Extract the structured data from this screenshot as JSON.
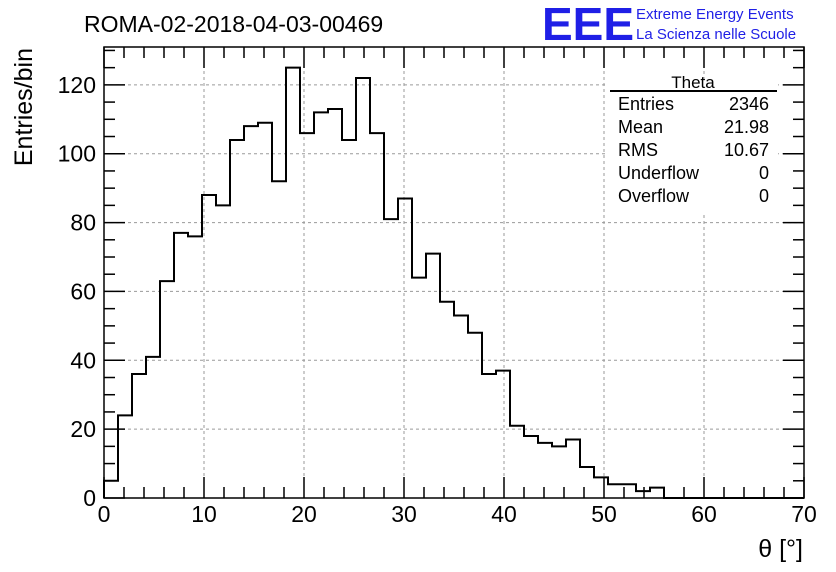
{
  "chart_data": {
    "type": "histogram",
    "title": "ROMA-02-2018-04-03-00469",
    "xlabel": "θ [°]",
    "ylabel": "Entries/bin",
    "xlim": [
      0,
      70
    ],
    "ylim": [
      0,
      131
    ],
    "grid": true,
    "x_ticks": [
      "0",
      "10",
      "20",
      "30",
      "40",
      "50",
      "60",
      "70"
    ],
    "y_ticks": [
      "0",
      "20",
      "40",
      "60",
      "80",
      "100",
      "120"
    ],
    "bin_width": 1.4,
    "values": [
      5,
      24,
      36,
      41,
      63,
      77,
      76,
      88,
      85,
      104,
      108,
      109,
      92,
      125,
      106,
      112,
      113,
      104,
      122,
      106,
      81,
      87,
      64,
      71,
      57,
      53,
      48,
      36,
      37,
      21,
      18,
      16,
      15,
      17,
      9,
      6,
      4,
      4,
      2,
      3,
      0,
      0,
      0,
      0,
      0,
      0,
      0,
      0,
      0,
      0
    ],
    "stats": {
      "name": "Theta",
      "rows": [
        {
          "label": "Entries",
          "value": "2346"
        },
        {
          "label": "Mean",
          "value": "21.98"
        },
        {
          "label": "RMS",
          "value": "10.67"
        },
        {
          "label": "Underflow",
          "value": "0"
        },
        {
          "label": "Overflow",
          "value": "0"
        }
      ]
    }
  },
  "logo": {
    "mark": "EEE",
    "line1": "Extreme Energy Events",
    "line2": "La Scienza nelle Scuole",
    "color": "#1f1fe6"
  },
  "colors": {
    "line": "#000000",
    "grid": "#9a9a9a"
  }
}
